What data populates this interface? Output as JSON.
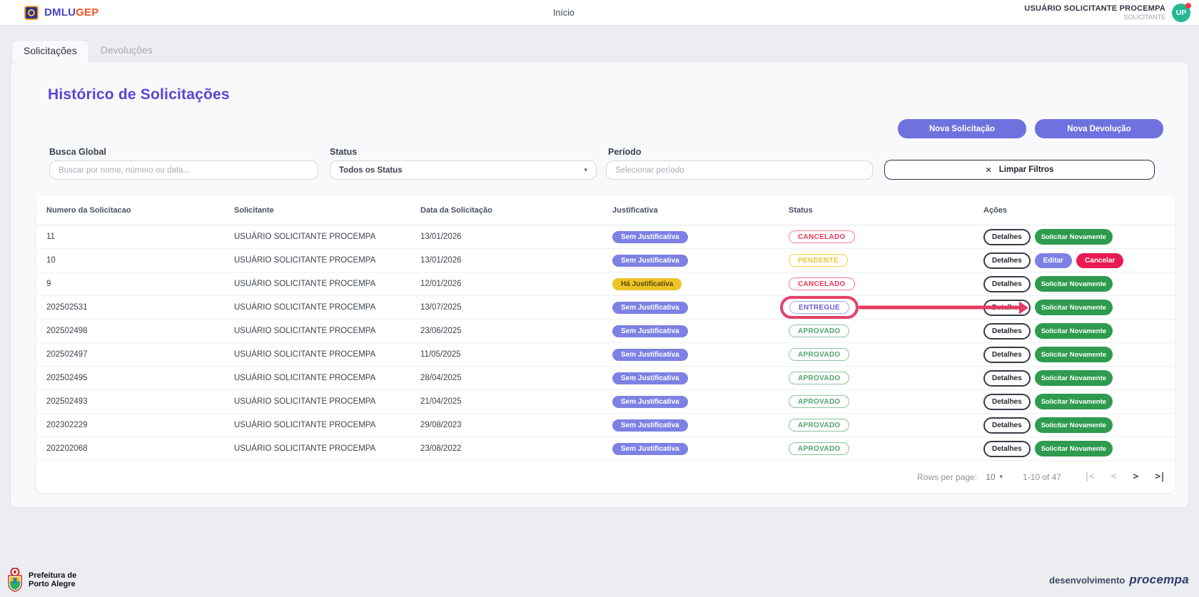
{
  "header": {
    "brand": {
      "name_primary": "DMLU",
      "name_secondary": "GEP"
    },
    "nav_home": "Início",
    "user": {
      "name": "USUÁRIO SOLICITANTE PROCEMPA",
      "role": "SOLICITANTE",
      "initials": "UP"
    }
  },
  "tabs": {
    "solicitacoes": "Solicitações",
    "devolucoes": "Devoluções"
  },
  "main": {
    "title": "Histórico de Solicitações",
    "buttons": {
      "nova_solicitacao": "Nova Solicitação",
      "nova_devolucao": "Nova Devolução"
    },
    "filters": {
      "busca": {
        "label": "Busca Global",
        "placeholder": "Buscar por nome, número ou data..."
      },
      "status": {
        "label": "Status",
        "value": "Todos os Status"
      },
      "periodo": {
        "label": "Período",
        "placeholder": "Selecionar período"
      },
      "limpar": {
        "label": "Limpar Filtros"
      }
    },
    "table": {
      "columns": [
        "Numero da Solicitacao",
        "Solicitante",
        "Data da Solicitação",
        "Justificativa",
        "Status",
        "Ações"
      ],
      "rows": [
        {
          "numero": "11",
          "solicitante": "USUÁRIO SOLICITANTE PROCEMPA",
          "data": "13/01/2026",
          "justificativa": {
            "label": "Sem Justificativa",
            "type": "sem"
          },
          "status": {
            "label": "CANCELADO",
            "type": "cancelado"
          },
          "annotated": false,
          "actions": [
            {
              "label": "Detalhes",
              "type": "outline",
              "name": "detalhes"
            },
            {
              "label": "Solicitar Novamente",
              "type": "green",
              "name": "solicitar-novamente"
            }
          ]
        },
        {
          "numero": "10",
          "solicitante": "USUÁRIO SOLICITANTE PROCEMPA",
          "data": "13/01/2026",
          "justificativa": {
            "label": "Sem Justificativa",
            "type": "sem"
          },
          "status": {
            "label": "PENDENTE",
            "type": "pendente"
          },
          "annotated": false,
          "actions": [
            {
              "label": "Detalhes",
              "type": "outline",
              "name": "detalhes"
            },
            {
              "label": "Editar",
              "type": "purple",
              "name": "editar"
            },
            {
              "label": "Cancelar",
              "type": "red",
              "name": "cancelar"
            }
          ]
        },
        {
          "numero": "9",
          "solicitante": "USUÁRIO SOLICITANTE PROCEMPA",
          "data": "12/01/2026",
          "justificativa": {
            "label": "Há Justificativa",
            "type": "ha"
          },
          "status": {
            "label": "CANCELADO",
            "type": "cancelado"
          },
          "annotated": false,
          "actions": [
            {
              "label": "Detalhes",
              "type": "outline",
              "name": "detalhes"
            },
            {
              "label": "Solicitar Novamente",
              "type": "green",
              "name": "solicitar-novamente"
            }
          ]
        },
        {
          "numero": "202502531",
          "solicitante": "USUÁRIO SOLICITANTE PROCEMPA",
          "data": "13/07/2025",
          "justificativa": {
            "label": "Sem Justificativa",
            "type": "sem"
          },
          "status": {
            "label": "ENTREGUE",
            "type": "entregue"
          },
          "annotated": true,
          "actions": [
            {
              "label": "Detalhes",
              "type": "outline",
              "name": "detalhes"
            },
            {
              "label": "Solicitar Novamente",
              "type": "green",
              "name": "solicitar-novamente"
            }
          ]
        },
        {
          "numero": "202502498",
          "solicitante": "USUÁRIO SOLICITANTE PROCEMPA",
          "data": "23/06/2025",
          "justificativa": {
            "label": "Sem Justificativa",
            "type": "sem"
          },
          "status": {
            "label": "APROVADO",
            "type": "aprovado"
          },
          "annotated": false,
          "actions": [
            {
              "label": "Detalhes",
              "type": "outline",
              "name": "detalhes"
            },
            {
              "label": "Solicitar Novamente",
              "type": "green",
              "name": "solicitar-novamente"
            }
          ]
        },
        {
          "numero": "202502497",
          "solicitante": "USUÁRIO SOLICITANTE PROCEMPA",
          "data": "11/05/2025",
          "justificativa": {
            "label": "Sem Justificativa",
            "type": "sem"
          },
          "status": {
            "label": "APROVADO",
            "type": "aprovado"
          },
          "annotated": false,
          "actions": [
            {
              "label": "Detalhes",
              "type": "outline",
              "name": "detalhes"
            },
            {
              "label": "Solicitar Novamente",
              "type": "green",
              "name": "solicitar-novamente"
            }
          ]
        },
        {
          "numero": "202502495",
          "solicitante": "USUÁRIO SOLICITANTE PROCEMPA",
          "data": "28/04/2025",
          "justificativa": {
            "label": "Sem Justificativa",
            "type": "sem"
          },
          "status": {
            "label": "APROVADO",
            "type": "aprovado"
          },
          "annotated": false,
          "actions": [
            {
              "label": "Detalhes",
              "type": "outline",
              "name": "detalhes"
            },
            {
              "label": "Solicitar Novamente",
              "type": "green",
              "name": "solicitar-novamente"
            }
          ]
        },
        {
          "numero": "202502493",
          "solicitante": "USUÁRIO SOLICITANTE PROCEMPA",
          "data": "21/04/2025",
          "justificativa": {
            "label": "Sem Justificativa",
            "type": "sem"
          },
          "status": {
            "label": "APROVADO",
            "type": "aprovado"
          },
          "annotated": false,
          "actions": [
            {
              "label": "Detalhes",
              "type": "outline",
              "name": "detalhes"
            },
            {
              "label": "Solicitar Novamente",
              "type": "green",
              "name": "solicitar-novamente"
            }
          ]
        },
        {
          "numero": "202302229",
          "solicitante": "USUÁRIO SOLICITANTE PROCEMPA",
          "data": "29/08/2023",
          "justificativa": {
            "label": "Sem Justificativa",
            "type": "sem"
          },
          "status": {
            "label": "APROVADO",
            "type": "aprovado"
          },
          "annotated": false,
          "actions": [
            {
              "label": "Detalhes",
              "type": "outline",
              "name": "detalhes"
            },
            {
              "label": "Solicitar Novamente",
              "type": "green",
              "name": "solicitar-novamente"
            }
          ]
        },
        {
          "numero": "202202068",
          "solicitante": "USUÁRIO SOLICITANTE PROCEMPA",
          "data": "23/08/2022",
          "justificativa": {
            "label": "Sem Justificativa",
            "type": "sem"
          },
          "status": {
            "label": "APROVADO",
            "type": "aprovado"
          },
          "annotated": false,
          "actions": [
            {
              "label": "Detalhes",
              "type": "outline",
              "name": "detalhes"
            },
            {
              "label": "Solicitar Novamente",
              "type": "green",
              "name": "solicitar-novamente"
            }
          ]
        }
      ]
    },
    "pagination": {
      "label": "Rows per page:",
      "per_page": "10",
      "range": "1-10 of 47"
    }
  },
  "icons": {
    "clear": "✕",
    "caret": "▾",
    "page_first": "|<",
    "page_prev": "<",
    "page_next": ">",
    "page_last": ">|",
    "avatar_dot": "notification"
  },
  "footer": {
    "org_line1": "Prefeitura de",
    "org_line2": "Porto Alegre",
    "dev_text": "desenvolvimento",
    "dev_brand": "procempa"
  },
  "colors": {
    "accent_purple": "#6e72de",
    "title_purple": "#5746d6",
    "green": "#2e9b4f",
    "red": "#e91a52",
    "yellow": "#edc428",
    "annotation_red": "#e43b63",
    "avatar_teal": "#26b793",
    "brand_orange": "#f4511e"
  }
}
